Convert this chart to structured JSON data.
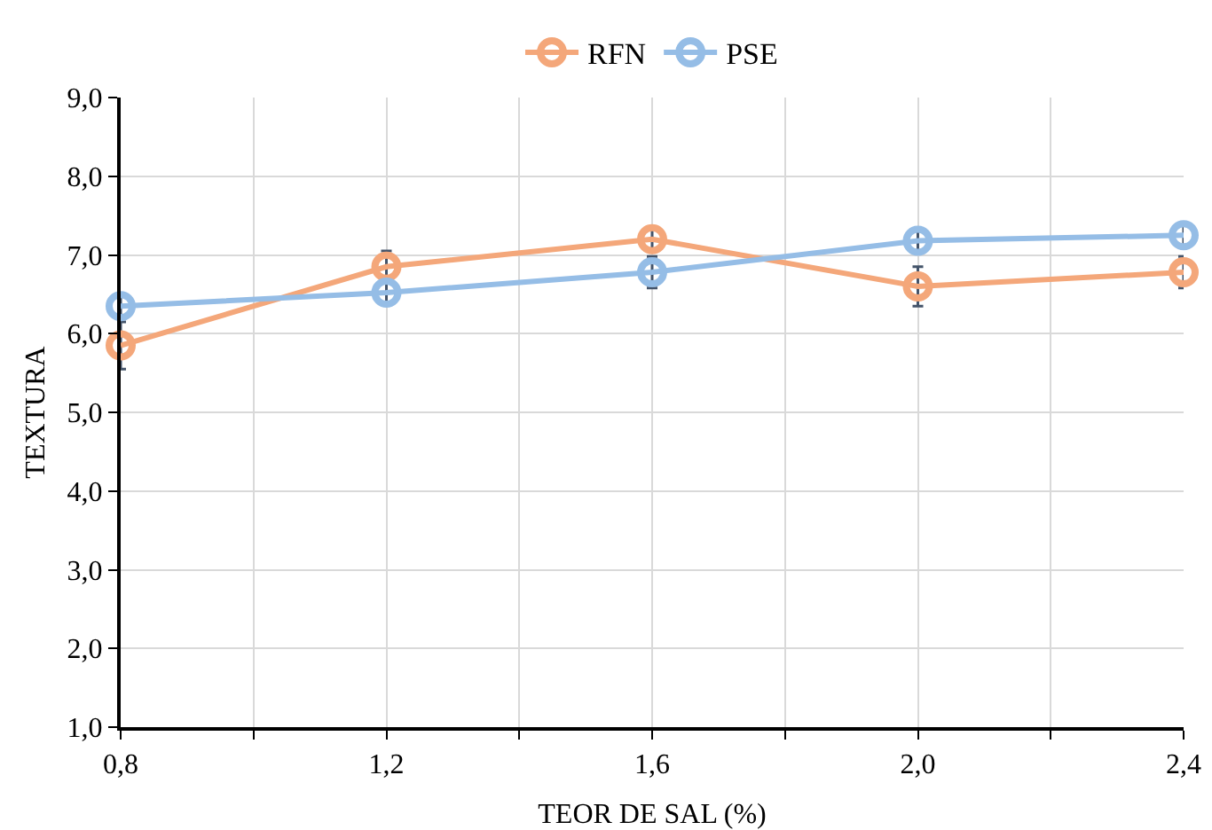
{
  "chart_data": {
    "type": "line",
    "xlabel": "TEOR DE SAL (%)",
    "ylabel": "TEXTURA",
    "x": [
      0.8,
      1.2,
      1.6,
      2.0,
      2.4
    ],
    "series": [
      {
        "name": "RFN",
        "color": "#f4a77a",
        "values": [
          5.85,
          6.85,
          7.2,
          6.6,
          6.78
        ],
        "errors": [
          0.3,
          0.2,
          0.15,
          0.25,
          0.2
        ]
      },
      {
        "name": "PSE",
        "color": "#95bde6",
        "values": [
          6.35,
          6.52,
          6.78,
          7.18,
          7.25
        ],
        "errors": [
          0.15,
          0.15,
          0.2,
          0.15,
          0.15
        ]
      }
    ],
    "xlim": [
      0.8,
      2.4
    ],
    "xticks": [
      {
        "value": 0.8,
        "label": "0,8"
      },
      {
        "value": 1.0,
        "label": null
      },
      {
        "value": 1.2,
        "label": "1,2"
      },
      {
        "value": 1.4,
        "label": null
      },
      {
        "value": 1.6,
        "label": "1,6"
      },
      {
        "value": 1.8,
        "label": null
      },
      {
        "value": 2.0,
        "label": "2,0"
      },
      {
        "value": 2.2,
        "label": null
      },
      {
        "value": 2.4,
        "label": "2,4"
      }
    ],
    "ylim": [
      1,
      9
    ],
    "yticks": [
      {
        "value": 1,
        "label": "1,0"
      },
      {
        "value": 2,
        "label": "2,0"
      },
      {
        "value": 3,
        "label": "3,0"
      },
      {
        "value": 4,
        "label": "4,0"
      },
      {
        "value": 5,
        "label": "5,0"
      },
      {
        "value": 6,
        "label": "6,0"
      },
      {
        "value": 7,
        "label": "7,0"
      },
      {
        "value": 8,
        "label": "8,0"
      },
      {
        "value": 9,
        "label": "9,0"
      }
    ],
    "grid": true,
    "legend": "top",
    "marker": "circle",
    "line_style": "solid"
  }
}
